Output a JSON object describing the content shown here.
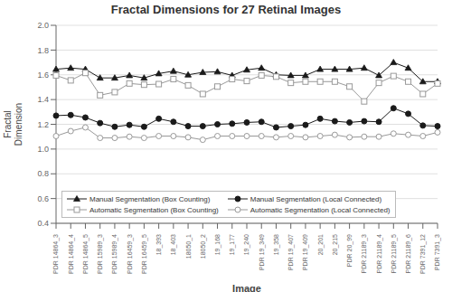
{
  "chart_data": {
    "type": "line",
    "title": "Fractal Dimensions for 27 Retinal Images",
    "xlabel": "Image",
    "ylabel": "Fractal\nDimension",
    "categories": [
      "PDR 14864_3",
      "PDR 14864_4",
      "PDR 14864_5",
      "PDR 15989_3",
      "PDR 15989_4",
      "PDR 16459_3",
      "PDR 16459_5",
      "18_393",
      "18_403",
      "18050_1",
      "18050_2",
      "19_168",
      "19_177",
      "19_240",
      "PDR 19_349",
      "19_358",
      "PDR 19_407",
      "PDR 19_409",
      "20_201",
      "20_215",
      "PDR 20_99",
      "PDR 21189_3",
      "PDR 21189_4",
      "PDR 21189_5",
      "PDR 21189_6",
      "PDR 7391_12",
      "PDR 7391_3"
    ],
    "series": [
      {
        "name": "Manual Segmentation (Box Counting)",
        "color": "#1a1a1a",
        "marker": "triangle",
        "line_style": "solid",
        "values": [
          1.645,
          1.655,
          1.645,
          1.575,
          1.575,
          1.595,
          1.575,
          1.61,
          1.63,
          1.6,
          1.62,
          1.625,
          1.595,
          1.64,
          1.655,
          1.6,
          1.595,
          1.595,
          1.645,
          1.645,
          1.645,
          1.655,
          1.595,
          1.7,
          1.655,
          1.545,
          1.545
        ]
      },
      {
        "name": "Manual Segmentation (Local Connected)",
        "color": "#1a1a1a",
        "marker": "circle",
        "line_style": "solid",
        "values": [
          1.27,
          1.275,
          1.255,
          1.21,
          1.18,
          1.195,
          1.18,
          1.245,
          1.22,
          1.185,
          1.185,
          1.2,
          1.205,
          1.215,
          1.22,
          1.175,
          1.185,
          1.195,
          1.245,
          1.225,
          1.215,
          1.225,
          1.22,
          1.33,
          1.285,
          1.19,
          1.185
        ]
      },
      {
        "name": "Automatic Segmentation (Box Counting)",
        "color": "#999999",
        "marker": "open-square",
        "line_style": "solid",
        "values": [
          1.595,
          1.555,
          1.615,
          1.435,
          1.46,
          1.53,
          1.52,
          1.525,
          1.565,
          1.515,
          1.445,
          1.505,
          1.565,
          1.55,
          1.595,
          1.585,
          1.535,
          1.545,
          1.545,
          1.545,
          1.505,
          1.385,
          1.535,
          1.59,
          1.545,
          1.445,
          1.53
        ]
      },
      {
        "name": "Automatic Segmentation (Local Connected)",
        "color": "#999999",
        "marker": "open-circle",
        "line_style": "solid",
        "values": [
          1.105,
          1.145,
          1.175,
          1.09,
          1.09,
          1.1,
          1.09,
          1.105,
          1.105,
          1.095,
          1.075,
          1.105,
          1.105,
          1.105,
          1.105,
          1.095,
          1.105,
          1.095,
          1.105,
          1.115,
          1.095,
          1.1,
          1.1,
          1.125,
          1.115,
          1.105,
          1.135
        ]
      }
    ],
    "ylim": [
      0.4,
      2.0
    ],
    "yticks": [
      0.4,
      0.6,
      0.8,
      {
        "value": 1,
        "label": "1.0"
      },
      1.2,
      1.4,
      1.6,
      1.8,
      {
        "value": 2,
        "label": "2.0"
      }
    ],
    "grid": true,
    "legend": "lower left"
  }
}
